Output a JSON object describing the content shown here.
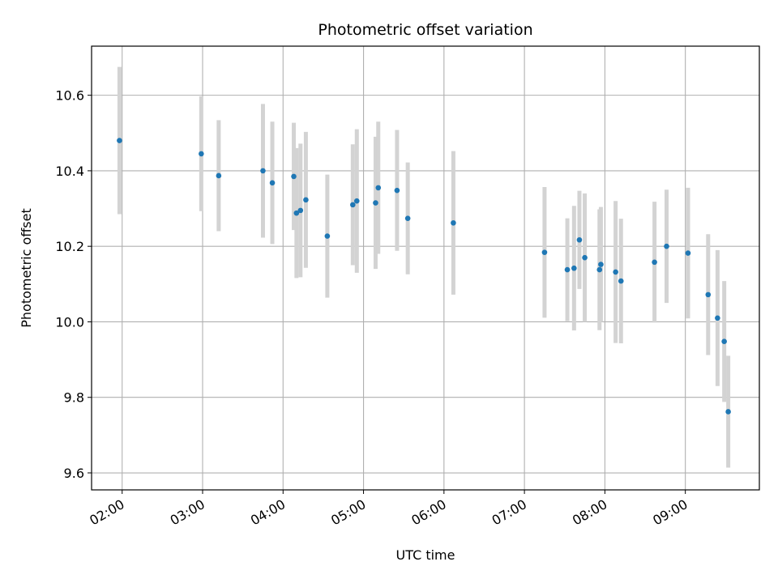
{
  "chart_data": {
    "type": "scatter",
    "title": "Photometric offset variation",
    "xlabel": "UTC time",
    "ylabel": "Photometric offset",
    "x_tick_labels": [
      "02:00",
      "03:00",
      "04:00",
      "05:00",
      "06:00",
      "07:00",
      "08:00",
      "09:00"
    ],
    "x_ticks_hours": [
      2,
      3,
      4,
      5,
      6,
      7,
      8,
      9
    ],
    "y_ticks": [
      9.6,
      9.8,
      10.0,
      10.2,
      10.4,
      10.6
    ],
    "y_tick_labels": [
      "9.6",
      "9.8",
      "10.0",
      "10.2",
      "10.4",
      "10.6"
    ],
    "xlim_hours": [
      1.62,
      9.92
    ],
    "ylim": [
      9.555,
      10.73
    ],
    "grid": true,
    "marker_color": "#1f77b4",
    "errorbar_color": "#d3d3d3",
    "points": [
      {
        "t": "01:58",
        "y": 10.48,
        "err": 0.195
      },
      {
        "t": "02:59",
        "y": 10.445,
        "err": 0.152
      },
      {
        "t": "03:12",
        "y": 10.387,
        "err": 0.147
      },
      {
        "t": "03:45",
        "y": 10.4,
        "err": 0.177
      },
      {
        "t": "03:52",
        "y": 10.368,
        "err": 0.162
      },
      {
        "t": "04:08",
        "y": 10.385,
        "err": 0.142
      },
      {
        "t": "04:10",
        "y": 10.288,
        "err": 0.172
      },
      {
        "t": "04:13",
        "y": 10.295,
        "err": 0.177
      },
      {
        "t": "04:17",
        "y": 10.323,
        "err": 0.18
      },
      {
        "t": "04:33",
        "y": 10.227,
        "err": 0.163
      },
      {
        "t": "04:52",
        "y": 10.31,
        "err": 0.16
      },
      {
        "t": "04:55",
        "y": 10.32,
        "err": 0.19
      },
      {
        "t": "05:09",
        "y": 10.315,
        "err": 0.175
      },
      {
        "t": "05:11",
        "y": 10.355,
        "err": 0.175
      },
      {
        "t": "05:25",
        "y": 10.348,
        "err": 0.16
      },
      {
        "t": "05:33",
        "y": 10.274,
        "err": 0.148
      },
      {
        "t": "06:07",
        "y": 10.262,
        "err": 0.19
      },
      {
        "t": "07:15",
        "y": 10.184,
        "err": 0.173
      },
      {
        "t": "07:32",
        "y": 10.138,
        "err": 0.136
      },
      {
        "t": "07:37",
        "y": 10.142,
        "err": 0.165
      },
      {
        "t": "07:41",
        "y": 10.217,
        "err": 0.13
      },
      {
        "t": "07:45",
        "y": 10.17,
        "err": 0.17
      },
      {
        "t": "07:56",
        "y": 10.138,
        "err": 0.16
      },
      {
        "t": "07:57",
        "y": 10.152,
        "err": 0.152
      },
      {
        "t": "08:08",
        "y": 10.132,
        "err": 0.188
      },
      {
        "t": "08:12",
        "y": 10.108,
        "err": 0.165
      },
      {
        "t": "08:37",
        "y": 10.158,
        "err": 0.16
      },
      {
        "t": "08:46",
        "y": 10.2,
        "err": 0.15
      },
      {
        "t": "09:02",
        "y": 10.182,
        "err": 0.173
      },
      {
        "t": "09:17",
        "y": 10.072,
        "err": 0.16
      },
      {
        "t": "09:24",
        "y": 10.01,
        "err": 0.18
      },
      {
        "t": "09:29",
        "y": 9.948,
        "err": 0.16
      },
      {
        "t": "09:32",
        "y": 9.762,
        "err": 0.148
      }
    ]
  }
}
